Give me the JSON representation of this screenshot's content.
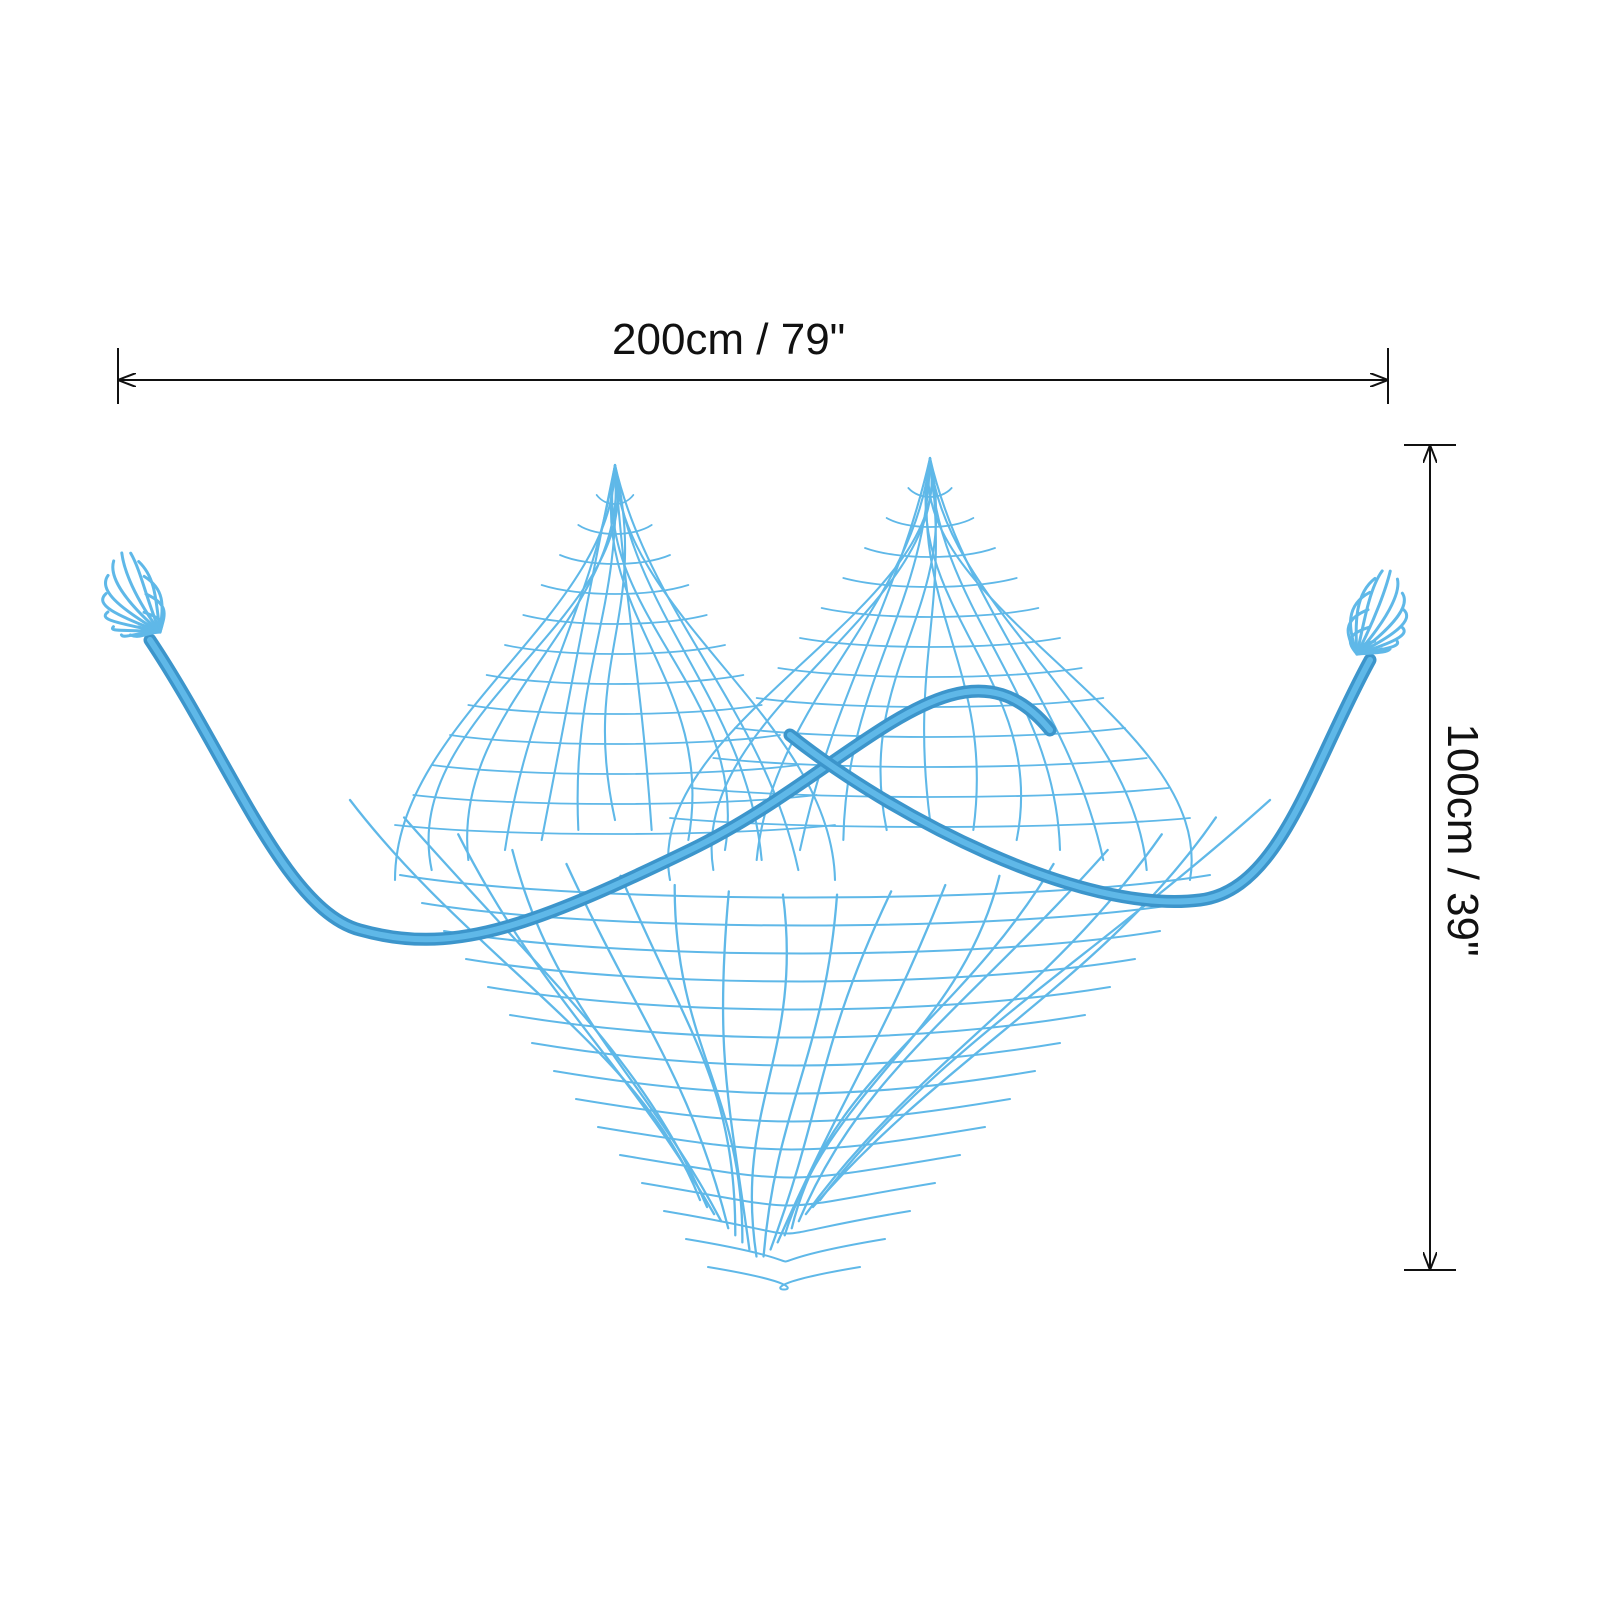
{
  "dimensions": {
    "width_label": "200cm / 79\"",
    "height_label": "100cm / 39\""
  },
  "product": {
    "color": "#5FB8E8",
    "shadow_color": "#3C95CB"
  },
  "colors": {
    "background": "#FFFFFF",
    "measurement": "#111111"
  }
}
